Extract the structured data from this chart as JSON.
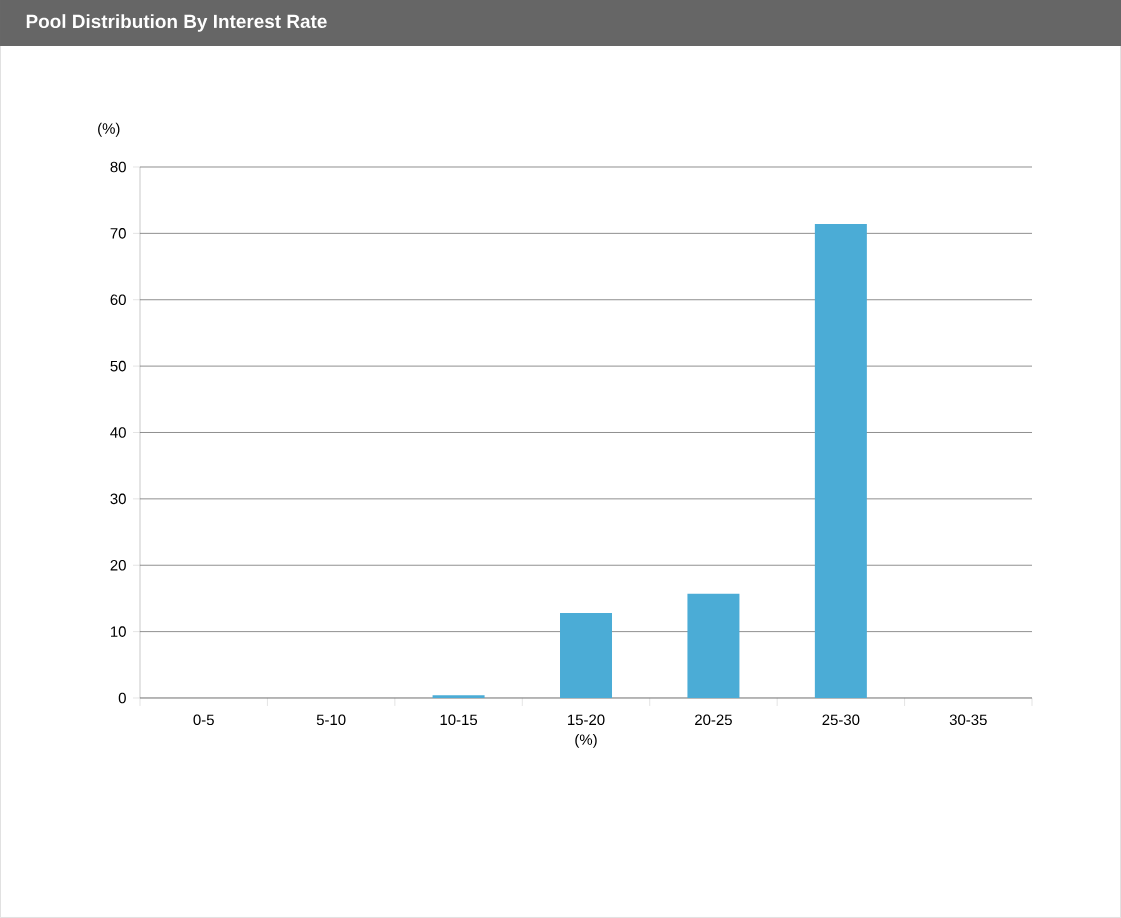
{
  "chart_data": {
    "type": "bar",
    "title": "Pool Distribution By Interest Rate",
    "xlabel": "(%)",
    "ylabel": "(%)",
    "categories": [
      "0-5",
      "5-10",
      "10-15",
      "15-20",
      "20-25",
      "25-30",
      "30-35"
    ],
    "values": [
      0,
      0,
      0.4,
      12.8,
      15.7,
      71.4,
      0
    ],
    "color": "#4bacd6",
    "ylim": [
      0,
      80
    ],
    "yticks": [
      0,
      10,
      20,
      30,
      40,
      50,
      60,
      70,
      80
    ],
    "grid": "y"
  }
}
